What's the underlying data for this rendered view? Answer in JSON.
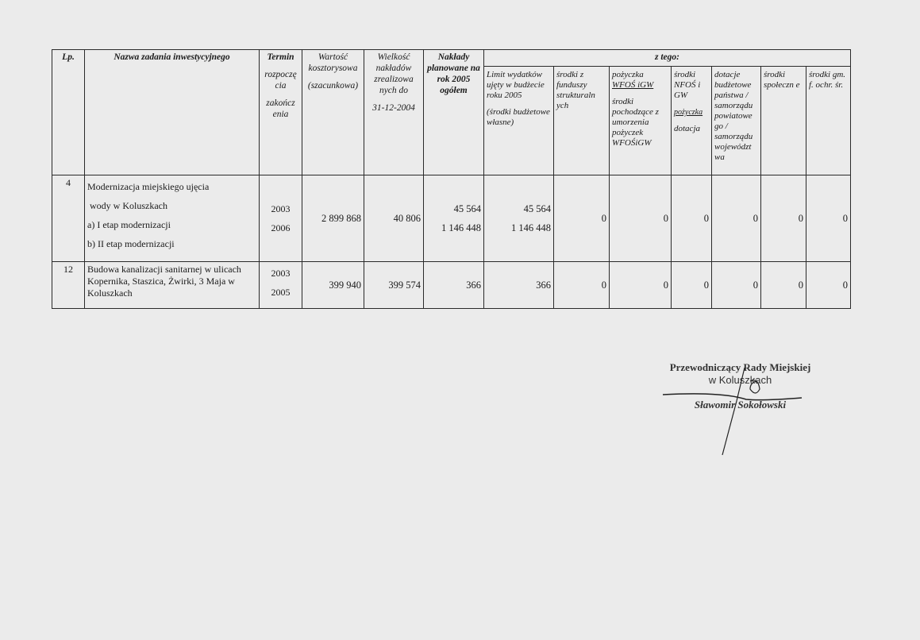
{
  "header": {
    "lp": "Lp.",
    "name": "Nazwa zadania inwestycyjnego",
    "term": [
      "Termin",
      "rozpoczę cia",
      "zakończ enia"
    ],
    "value": [
      "Wartość kosztorysowa",
      "(szacunkowa)"
    ],
    "realized": [
      "Wielkość nakładów zrealizowa nych do",
      "31-12-2004"
    ],
    "planned": "Nakłady planowane na rok 2005 ogółem",
    "z_tego": "z  tego:",
    "sub": {
      "limit": [
        "Limit wydatków ujęty w budżecie roku 2005",
        "(środki budżetowe własne)"
      ],
      "structural": "środki z funduszy strukturaln ych",
      "wfos": [
        "pożyczka",
        "WFOŚ iGW",
        "środki pochodzące z umorzenia pożyczek WFOŚiGW"
      ],
      "nfos": [
        "środki NFOŚ i GW",
        "pożyczka",
        "dotacja"
      ],
      "dotacje": "dotacje budżetowe państwa / samorządu powiatowe go / samorządu województ wa",
      "spoleczne": "środki społeczn e",
      "gm": "środki gm. f. ochr. śr."
    }
  },
  "rows": [
    {
      "lp": "4",
      "name": [
        "Modernizacja miejskiego ujęcia",
        " wody w Koluszkach",
        "a) I etap modernizacji",
        "b) II etap modernizacji"
      ],
      "term": [
        "2003",
        "2006"
      ],
      "value": "2 899 868",
      "realized": "40 806",
      "planned": [
        "45 564",
        "1 146 448"
      ],
      "limit": [
        "45 564",
        "1 146 448"
      ],
      "structural": "0",
      "wfos": "0",
      "nfos": "0",
      "dotacje": "0",
      "spoleczne": "0",
      "gm": "0"
    },
    {
      "lp": "12",
      "name": "Budowa kanalizacji sanitarnej w ulicach Kopernika, Staszica, Żwirki, 3 Maja w Koluszkach",
      "term": [
        "2003",
        "2005"
      ],
      "value": "399 940",
      "realized": "399 574",
      "planned": "366",
      "limit": "366",
      "structural": "0",
      "wfos": "0",
      "nfos": "0",
      "dotacje": "0",
      "spoleczne": "0",
      "gm": "0"
    }
  ],
  "signature": {
    "title": "Przewodniczący Rady Miejskiej",
    "place": "w Koluszkach",
    "name": "Sławomir Sokołowski"
  }
}
